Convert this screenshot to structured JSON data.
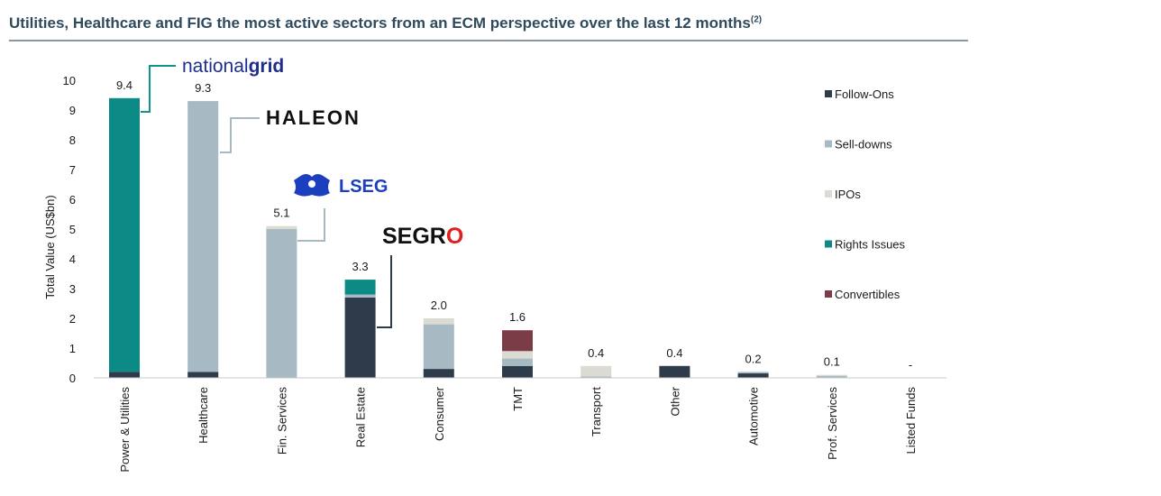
{
  "title": {
    "text": "Utilities, Healthcare and FIG the most active sectors from an ECM perspective over the last 12 months",
    "footnote": "(2)"
  },
  "colors": {
    "follow_ons": "#2d3b4b",
    "sell_downs": "#a7b9c2",
    "ipos": "#dcdbd3",
    "rights_issues": "#0c8a85",
    "convertibles": "#7b3c47",
    "text": "#1a1a1a",
    "leader": "#a7b9c2",
    "leader_dark": "#2d3b4b",
    "national_grid_blue": "#1e2e8c",
    "national_grid_line": "#12948e",
    "lseg_blue": "#1c3fbf",
    "segro_red": "#e02020"
  },
  "logos": {
    "national_grid": {
      "light": "national",
      "bold": "grid"
    },
    "haleon": "HALEON",
    "lseg": "LSEG",
    "segro": {
      "prefix": "SEGR",
      "ring": "O"
    }
  },
  "chart_data": {
    "type": "bar",
    "stacked": true,
    "title": "Utilities, Healthcare and FIG the most active sectors from an ECM perspective over the last 12 months",
    "xlabel": "",
    "ylabel": "Total Value (US$bn)",
    "ylim": [
      0,
      10
    ],
    "yticks": [
      0,
      1,
      2,
      3,
      4,
      5,
      6,
      7,
      8,
      9,
      10
    ],
    "grid": false,
    "legend_position": "right",
    "categories": [
      "Power & Utilities",
      "Healthcare",
      "Fin. Services",
      "Real Estate",
      "Consumer",
      "TMT",
      "Transport",
      "Other",
      "Automotive",
      "Prof. Services",
      "Listed Funds"
    ],
    "series": [
      {
        "name": "Follow-Ons",
        "values": [
          0.2,
          0.2,
          0.0,
          2.7,
          0.3,
          0.4,
          0.0,
          0.4,
          0.15,
          0.0,
          0.0
        ]
      },
      {
        "name": "Sell-downs",
        "values": [
          0.0,
          9.1,
          5.0,
          0.1,
          1.5,
          0.25,
          0.05,
          0.0,
          0.05,
          0.07,
          0.0
        ]
      },
      {
        "name": "IPOs",
        "values": [
          0.0,
          0.0,
          0.1,
          0.0,
          0.2,
          0.25,
          0.35,
          0.0,
          0.0,
          0.03,
          0.0
        ]
      },
      {
        "name": "Rights Issues",
        "values": [
          9.2,
          0.0,
          0.0,
          0.5,
          0.0,
          0.0,
          0.0,
          0.0,
          0.0,
          0.0,
          0.0
        ]
      },
      {
        "name": "Convertibles",
        "values": [
          0.0,
          0.0,
          0.0,
          0.0,
          0.0,
          0.7,
          0.0,
          0.0,
          0.0,
          0.0,
          0.0
        ]
      }
    ],
    "totals_labels": [
      "9.4",
      "9.3",
      "5.1",
      "3.3",
      "2.0",
      "1.6",
      "0.4",
      "0.4",
      "0.2",
      "0.1",
      "-"
    ],
    "legend": [
      "Follow-Ons",
      "Sell-downs",
      "IPOs",
      "Rights Issues",
      "Convertibles"
    ]
  }
}
